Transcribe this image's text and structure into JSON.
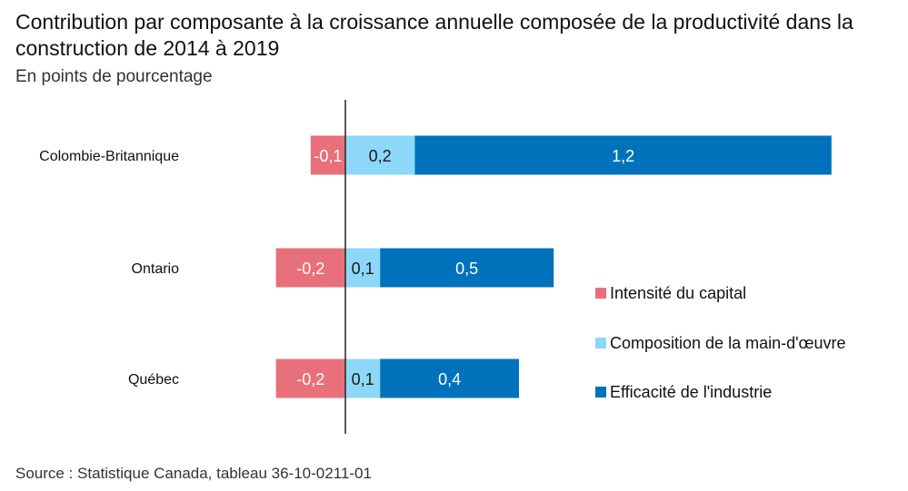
{
  "title": "Contribution par composante à la croissance annuelle composée de la productivité dans la construction de 2014 à 2019",
  "subtitle": "En points de pourcentage",
  "source": "Source : Statistique Canada, tableau 36-10-0211-01",
  "colors": {
    "intensite": "#e8707a",
    "composition": "#8dd8f8",
    "efficacite": "#0072bb",
    "axis": "#222222"
  },
  "chart_data": {
    "type": "bar",
    "orientation": "horizontal",
    "stacked": true,
    "categories": [
      "Colombie-Britannique",
      "Ontario",
      "Québec"
    ],
    "series": [
      {
        "name": "Intensité du capital",
        "values": [
          -0.1,
          -0.2,
          -0.2
        ],
        "labels": [
          "-0,1",
          "-0,2",
          "-0,2"
        ]
      },
      {
        "name": "Composition de la main-d'œuvre",
        "values": [
          0.2,
          0.1,
          0.1
        ],
        "labels": [
          "0,2",
          "0,1",
          "0,1"
        ]
      },
      {
        "name": "Efficacité de l'industrie",
        "values": [
          1.2,
          0.5,
          0.4
        ],
        "labels": [
          "1,2",
          "0,5",
          "0,4"
        ]
      }
    ],
    "legend_position": "right",
    "grid": false
  }
}
